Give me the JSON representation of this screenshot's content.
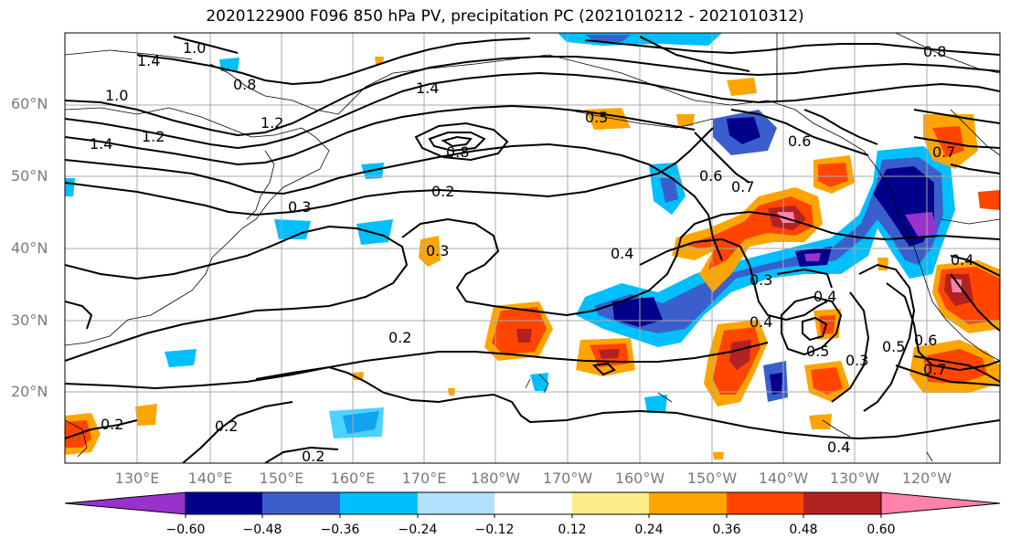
{
  "title": "2020122900 F096 850 hPa PV, precipitation PC (2021010212 - 2021010312)",
  "lat_labels": [
    "60°N",
    "50°N",
    "40°N",
    "30°N",
    "20°N"
  ],
  "lon_labels": [
    "130°E",
    "140°E",
    "150°E",
    "160°E",
    "170°E",
    "180°W",
    "170°W",
    "160°W",
    "150°W",
    "140°W",
    "130°W",
    "120°W"
  ],
  "colorbar": {
    "colors": [
      "#9932cc",
      "#00008b",
      "#3a5fcd",
      "#00bfff",
      "#b0e2ff",
      "#ffffff",
      "#ffec8b",
      "#ffa500",
      "#ff4500",
      "#b22222",
      "#ff82ab"
    ],
    "tick_labels": [
      "−0.60",
      "−0.48",
      "−0.36",
      "−0.24",
      "−0.12",
      "0.12",
      "0.24",
      "0.36",
      "0.48",
      "0.60"
    ]
  },
  "contour_labels": [
    "1.0",
    "1.4",
    "0.8",
    "1.0",
    "1.4",
    "1.2",
    "1.4",
    "1.2",
    "0.8",
    "0.5",
    "0.6",
    "0.6",
    "0.7",
    "0.3",
    "0.2",
    "0.3",
    "0.4",
    "0.3",
    "0.4",
    "0.4",
    "0.5",
    "0.3",
    "0.5",
    "0.6",
    "0.7",
    "0.2",
    "0.2",
    "0.2",
    "0.2",
    "0.4",
    "0.7",
    "0.8",
    "0.4"
  ]
}
